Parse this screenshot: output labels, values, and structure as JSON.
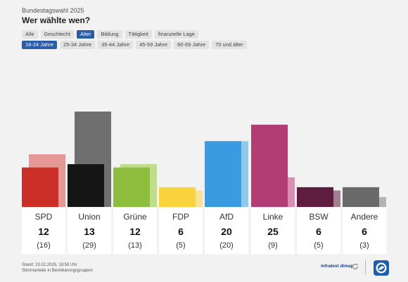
{
  "header": {
    "kicker": "Bundestagswahl 2025",
    "title": "Wer wählte wen?"
  },
  "filter_tabs": [
    "Alle",
    "Geschlecht",
    "Alter",
    "Bildung",
    "Tätigkeit",
    "finanzielle Lage"
  ],
  "filter_active": "Alter",
  "age_tabs": [
    "18-24 Jahre",
    "25-34 Jahre",
    "35-44 Jahre",
    "45-59 Jahre",
    "60-69 Jahre",
    "70 und älter"
  ],
  "age_active": "18-24 Jahre",
  "chart_data": {
    "type": "bar",
    "categories": [
      "SPD",
      "Union",
      "Grüne",
      "FDP",
      "AfD",
      "Linke",
      "BSW",
      "Andere"
    ],
    "series": [
      {
        "values": [
          12,
          13,
          12,
          6,
          20,
          25,
          6,
          6
        ]
      },
      {
        "values": [
          16,
          29,
          13,
          5,
          20,
          9,
          5,
          3
        ]
      }
    ],
    "value_labels": [
      "12",
      "13",
      "12",
      "6",
      "20",
      "25",
      "6",
      "6"
    ],
    "prev_labels": [
      "(16)",
      "(29)",
      "(13)",
      "(5)",
      "(20)",
      "(9)",
      "(5)",
      "(3)"
    ],
    "colors": [
      "#cc2f27",
      "#151515",
      "#8dbe3e",
      "#f9d33e",
      "#3b9be0",
      "#b23c74",
      "#5e1c3e",
      "#6a6a6a"
    ],
    "prev_colors": [
      "#e59896",
      "#6f6f6f",
      "#c0dd8e",
      "#fbe293",
      "#92c8ec",
      "#d88fb4",
      "#a67c91",
      "#b4b4b4"
    ],
    "grid": false
  },
  "footer": {
    "line1": "Stand: 23.02.2025, 18:59 Uhr",
    "line2": "Stimmanteile in Bevölkerungsgruppen"
  },
  "brand": {
    "name": "infratest dimap",
    "brand_icon": "refresh-arrow-icon",
    "logo_icon": "broadcaster-logo-icon"
  }
}
